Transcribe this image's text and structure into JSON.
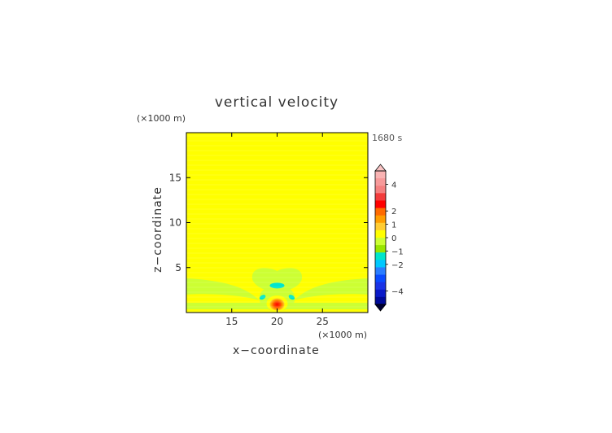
{
  "chart_data": {
    "type": "heatmap",
    "title": "vertical velocity",
    "xlabel": "x−coordinate",
    "ylabel": "z−coordinate",
    "x_unit": "(×1000 m)",
    "z_unit": "(×1000 m)",
    "time_label": "1680 s",
    "xlim": [
      10,
      30
    ],
    "ylim": [
      0,
      20
    ],
    "x_ticks": [
      15,
      20,
      25
    ],
    "y_ticks": [
      5,
      10,
      15
    ],
    "colorbar": {
      "ticks": [
        4,
        2,
        1,
        0,
        -1,
        -2,
        -4
      ],
      "tick_labels": [
        "4",
        "2",
        "1",
        "0",
        "−1",
        "−2",
        "−4"
      ],
      "range": [
        -5,
        5
      ],
      "colors_top_to_bottom": [
        "#f9b3b3",
        "#f79a9a",
        "#f58080",
        "#f33b3b",
        "#ff0000",
        "#ff6a00",
        "#ff9d00",
        "#ffcc33",
        "#ffff00",
        "#ccff33",
        "#99e600",
        "#00e6cc",
        "#00c8ff",
        "#2a7dff",
        "#0a4bff",
        "#1a33e6",
        "#0a1ac8",
        "#000a99"
      ]
    },
    "fields": [
      {
        "name": "background",
        "level": 0.2,
        "color": "#ffff00"
      },
      {
        "name": "low-level band",
        "level": -0.2,
        "color": "#ccff33"
      },
      {
        "name": "left arm",
        "level": -0.2,
        "color": "#ccff33"
      },
      {
        "name": "right arm",
        "level": -0.2,
        "color": "#ccff33"
      },
      {
        "name": "central lobe",
        "level": -0.2,
        "color": "#ccff33"
      },
      {
        "name": "downdraft cap",
        "level": -0.8,
        "color": "#00e6cc"
      },
      {
        "name": "updraft core",
        "level": 3.5,
        "color": "#ff0000"
      }
    ]
  }
}
